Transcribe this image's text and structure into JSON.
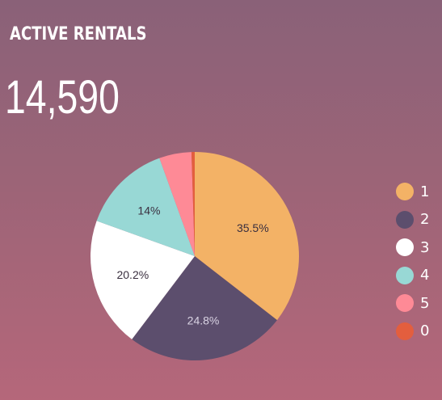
{
  "card": {
    "title": "ACTIVE RENTALS",
    "value": "14,590"
  },
  "chart_data": {
    "type": "pie",
    "categories": [
      "1",
      "2",
      "3",
      "4",
      "5",
      "0"
    ],
    "values": [
      35.5,
      24.8,
      20.2,
      14.0,
      5.0,
      0.5
    ],
    "slice_labels": [
      "35.5%",
      "24.8%",
      "20.2%",
      "14%",
      "",
      ""
    ],
    "colors": [
      "#f3b266",
      "#5c4e6d",
      "#ffffff",
      "#98d8d5",
      "#fe8a96",
      "#e35e3e"
    ],
    "label_colors": [
      "#3a2f3f",
      "#d9d3e3",
      "#3a2f3f",
      "#3a2f3f",
      "#3a2f3f",
      "#3a2f3f"
    ],
    "legend_position": "right",
    "title": ""
  }
}
